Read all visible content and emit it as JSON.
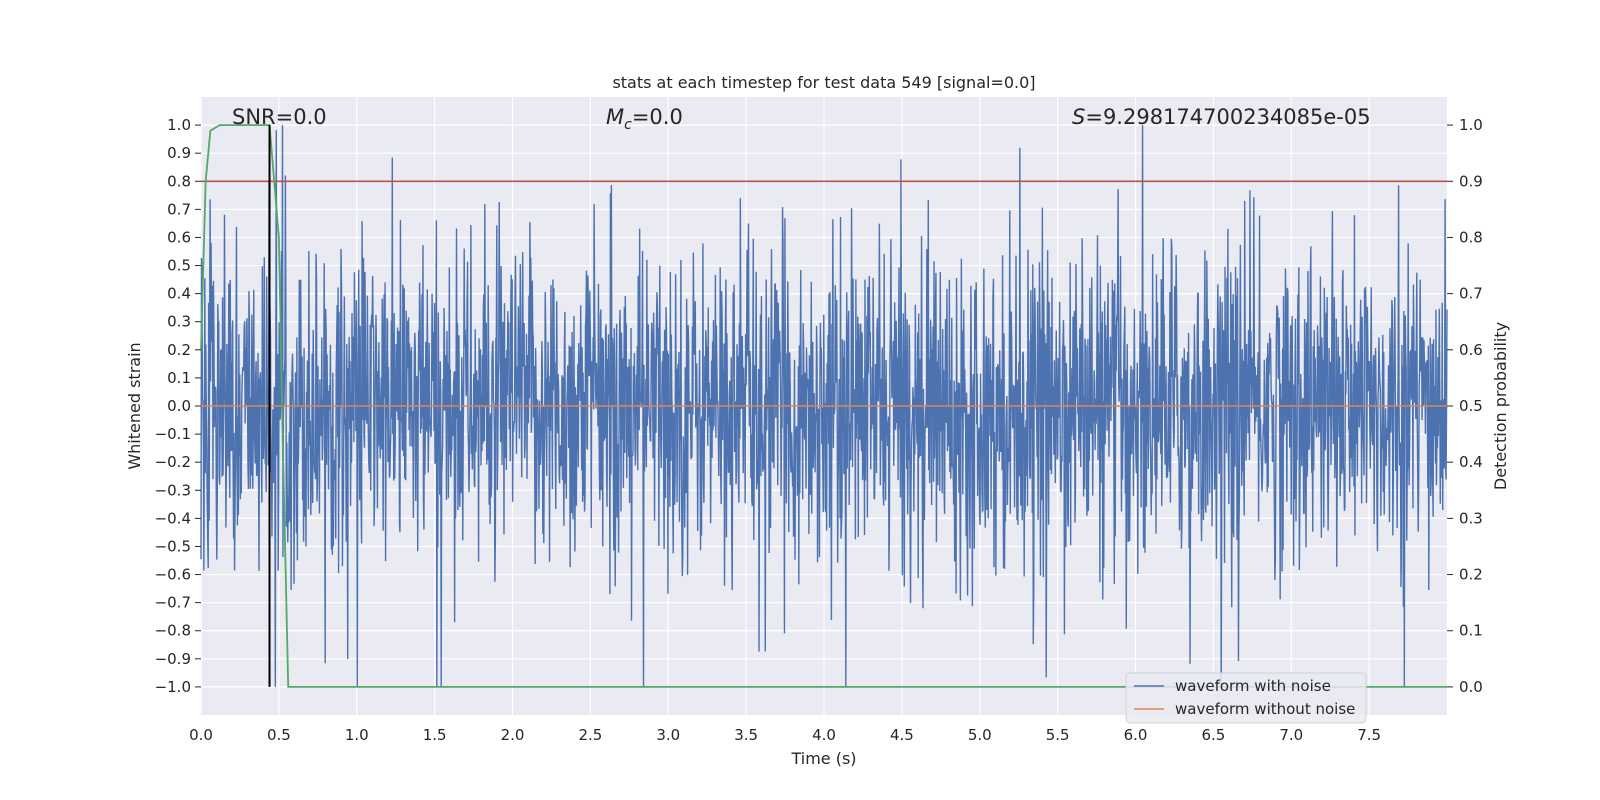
{
  "chart_data": {
    "type": "line",
    "title": "stats at each timestep for test data 549 [signal=0.0]",
    "xlabel": "Time (s)",
    "ylabel_left": "Whitened strain",
    "ylabel_right": "Detection probability",
    "xlim": [
      0.0,
      8.0
    ],
    "ylim_left": [
      -1.1,
      1.1
    ],
    "ylim_right": [
      -0.05,
      1.05
    ],
    "x_ticks": [
      "0.0",
      "0.5",
      "1.0",
      "1.5",
      "2.0",
      "2.5",
      "3.0",
      "3.5",
      "4.0",
      "4.5",
      "5.0",
      "5.5",
      "6.0",
      "6.5",
      "7.0",
      "7.5"
    ],
    "y_ticks_left": [
      "1.0",
      "0.9",
      "0.8",
      "0.7",
      "0.6",
      "0.5",
      "0.4",
      "0.3",
      "0.2",
      "0.1",
      "0.0",
      "−0.1",
      "−0.2",
      "−0.3",
      "−0.4",
      "−0.5",
      "−0.6",
      "−0.7",
      "−0.8",
      "−0.9",
      "−1.0"
    ],
    "y_ticks_right": [
      "1.0",
      "0.9",
      "0.8",
      "0.7",
      "0.6",
      "0.5",
      "0.4",
      "0.3",
      "0.2",
      "0.1",
      "0.0"
    ],
    "grid": true,
    "legend_position": "bottom-right",
    "annotations": {
      "snr": "SNR=0.0",
      "mc_symbol": "M",
      "mc_sub": "c",
      "mc_value": "=0.0",
      "s_symbol": "S",
      "s_value": "=9.298174700234085e-05"
    },
    "series": [
      {
        "name": "waveform with noise",
        "color": "#4c72b0",
        "axis": "left",
        "style": "noise band, approx. amplitude range -1.0 to 1.0 over 0-8 s",
        "duration_s": 8.0
      },
      {
        "name": "waveform without noise",
        "color": "#dd8452",
        "axis": "left",
        "x": [
          0.0,
          8.0
        ],
        "y": [
          0.0,
          0.0
        ]
      },
      {
        "name": "detection probability",
        "color": "#55a868",
        "axis": "right",
        "x": [
          0.0,
          0.03,
          0.06,
          0.12,
          0.3,
          0.44,
          0.5,
          0.52,
          0.56,
          0.6,
          8.0
        ],
        "y": [
          0.6,
          0.9,
          0.99,
          1.0,
          1.0,
          1.0,
          0.8,
          0.5,
          0.0,
          0.0,
          0.0
        ]
      }
    ],
    "threshold": {
      "axis": "right",
      "value": 0.9,
      "color": "#c44e52"
    },
    "marker_line": {
      "x": 0.44,
      "y_from": -1.0,
      "y_to": 1.0,
      "color": "#000000"
    },
    "colors": {
      "plot_bg": "#eaeaf2",
      "grid": "#ffffff"
    }
  }
}
